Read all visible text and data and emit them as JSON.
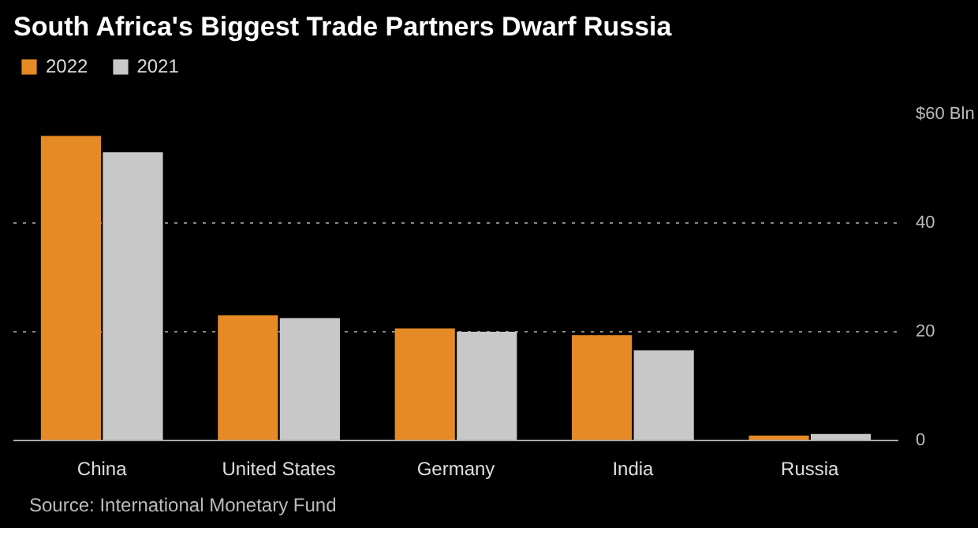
{
  "chart_data": {
    "type": "bar",
    "title": "South Africa's Biggest Trade Partners Dwarf Russia",
    "categories": [
      "China",
      "United States",
      "Germany",
      "India",
      "Russia"
    ],
    "series": [
      {
        "name": "2022",
        "color": "#e58a25",
        "values": [
          56,
          23,
          20.6,
          19.4,
          0.9
        ]
      },
      {
        "name": "2021",
        "color": "#c8c8c8",
        "values": [
          53,
          22.5,
          20,
          16.6,
          1.2
        ]
      }
    ],
    "ylim": [
      0,
      60
    ],
    "yticks": [
      0,
      20,
      40,
      {
        "value": 60,
        "label": "$60 Bln"
      }
    ],
    "grid": "y",
    "legend": "top left",
    "annotations": [
      "Source: International Monetary Fund"
    ]
  }
}
